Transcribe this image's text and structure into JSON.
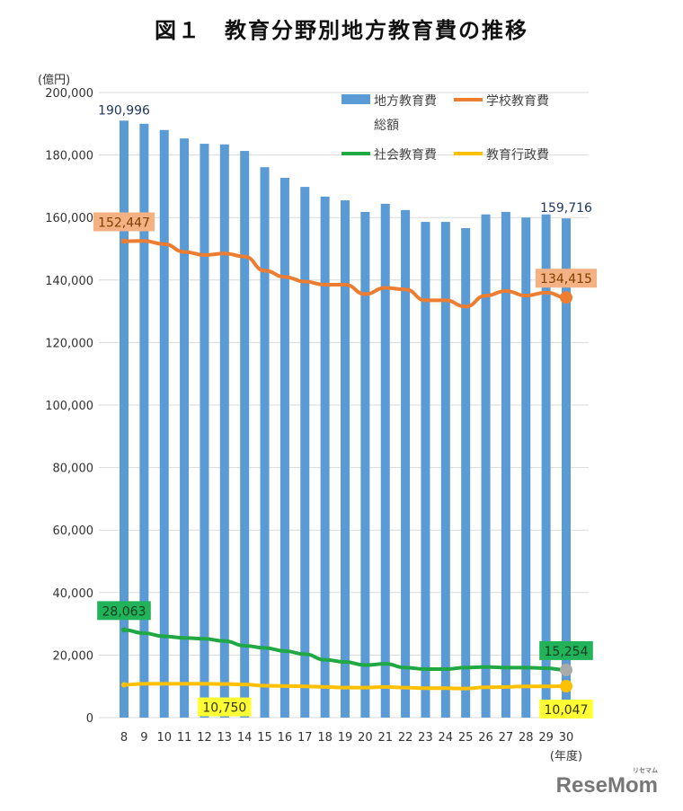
{
  "title": "図１　教育分野別地方教育費の推移",
  "watermark": {
    "text": "ReseMom",
    "ruby": "リセマム"
  },
  "chart_data": {
    "type": "bar+line",
    "title": "図１　教育分野別地方教育費の推移",
    "yunit": "(億円)",
    "xunit": "(年度)",
    "ylim": [
      0,
      200000
    ],
    "yticks": [
      0,
      20000,
      40000,
      60000,
      80000,
      100000,
      120000,
      140000,
      160000,
      180000,
      200000
    ],
    "ytick_labels": [
      "0",
      "20,000",
      "40,000",
      "60,000",
      "80,000",
      "100,000",
      "120,000",
      "140,000",
      "160,000",
      "180,000",
      "200,000"
    ],
    "grid": true,
    "legend_position": "top-right",
    "categories": [
      "8",
      "9",
      "10",
      "11",
      "12",
      "13",
      "14",
      "15",
      "16",
      "17",
      "18",
      "19",
      "20",
      "21",
      "22",
      "23",
      "24",
      "25",
      "26",
      "27",
      "28",
      "29",
      "30"
    ],
    "series": [
      {
        "name": "地方教育費総額",
        "legend_lines": [
          "地方教育費",
          "総額"
        ],
        "type": "bar",
        "color": "#5b9bd5",
        "values": [
          190996,
          190000,
          188000,
          185300,
          183600,
          183400,
          181300,
          176100,
          172700,
          169800,
          166700,
          165500,
          161800,
          164400,
          162400,
          158600,
          158600,
          156600,
          161000,
          161800,
          160000,
          161000,
          159716
        ]
      },
      {
        "name": "学校教育費",
        "type": "line",
        "color": "#ed7d31",
        "values": [
          152447,
          152500,
          151500,
          149000,
          148000,
          148500,
          147500,
          143000,
          141000,
          139500,
          138500,
          138500,
          135500,
          137500,
          137000,
          133500,
          133500,
          131500,
          135000,
          136500,
          135000,
          136000,
          134415
        ]
      },
      {
        "name": "社会教育費",
        "type": "line",
        "color": "#1fa843",
        "values": [
          28063,
          27000,
          26000,
          25500,
          25200,
          24500,
          23000,
          22300,
          21300,
          20300,
          18500,
          17800,
          16800,
          17200,
          16000,
          15500,
          15500,
          16000,
          16200,
          16000,
          16000,
          15800,
          15254
        ]
      },
      {
        "name": "教育行政費",
        "type": "line",
        "color": "#ffc000",
        "values": [
          10500,
          10800,
          10800,
          10800,
          10800,
          10750,
          10600,
          10200,
          10100,
          10000,
          9800,
          9600,
          9600,
          9800,
          9600,
          9400,
          9400,
          9300,
          9700,
          9800,
          10000,
          10000,
          10047
        ]
      }
    ],
    "data_labels": [
      {
        "series": 0,
        "index": 0,
        "text": "190,996",
        "bg": "none",
        "color": "#1f3864"
      },
      {
        "series": 0,
        "index": 22,
        "text": "159,716",
        "bg": "none",
        "color": "#1f3864"
      },
      {
        "series": 1,
        "index": 0,
        "text": "152,447",
        "bg": "#f4b183",
        "color": "#7f3f00"
      },
      {
        "series": 1,
        "index": 22,
        "text": "134,415",
        "bg": "#f4b183",
        "color": "#7f3f00"
      },
      {
        "series": 2,
        "index": 0,
        "text": "28,063",
        "bg": "#22b35a",
        "color": "#0b3d1e"
      },
      {
        "series": 2,
        "index": 22,
        "text": "15,254",
        "bg": "#22b35a",
        "color": "#0b3d1e"
      },
      {
        "series": 3,
        "index": 5,
        "text": "10,750",
        "bg": "#ffff33",
        "color": "#333300"
      },
      {
        "series": 3,
        "index": 22,
        "text": "10,047",
        "bg": "#ffff33",
        "color": "#333300"
      }
    ]
  }
}
